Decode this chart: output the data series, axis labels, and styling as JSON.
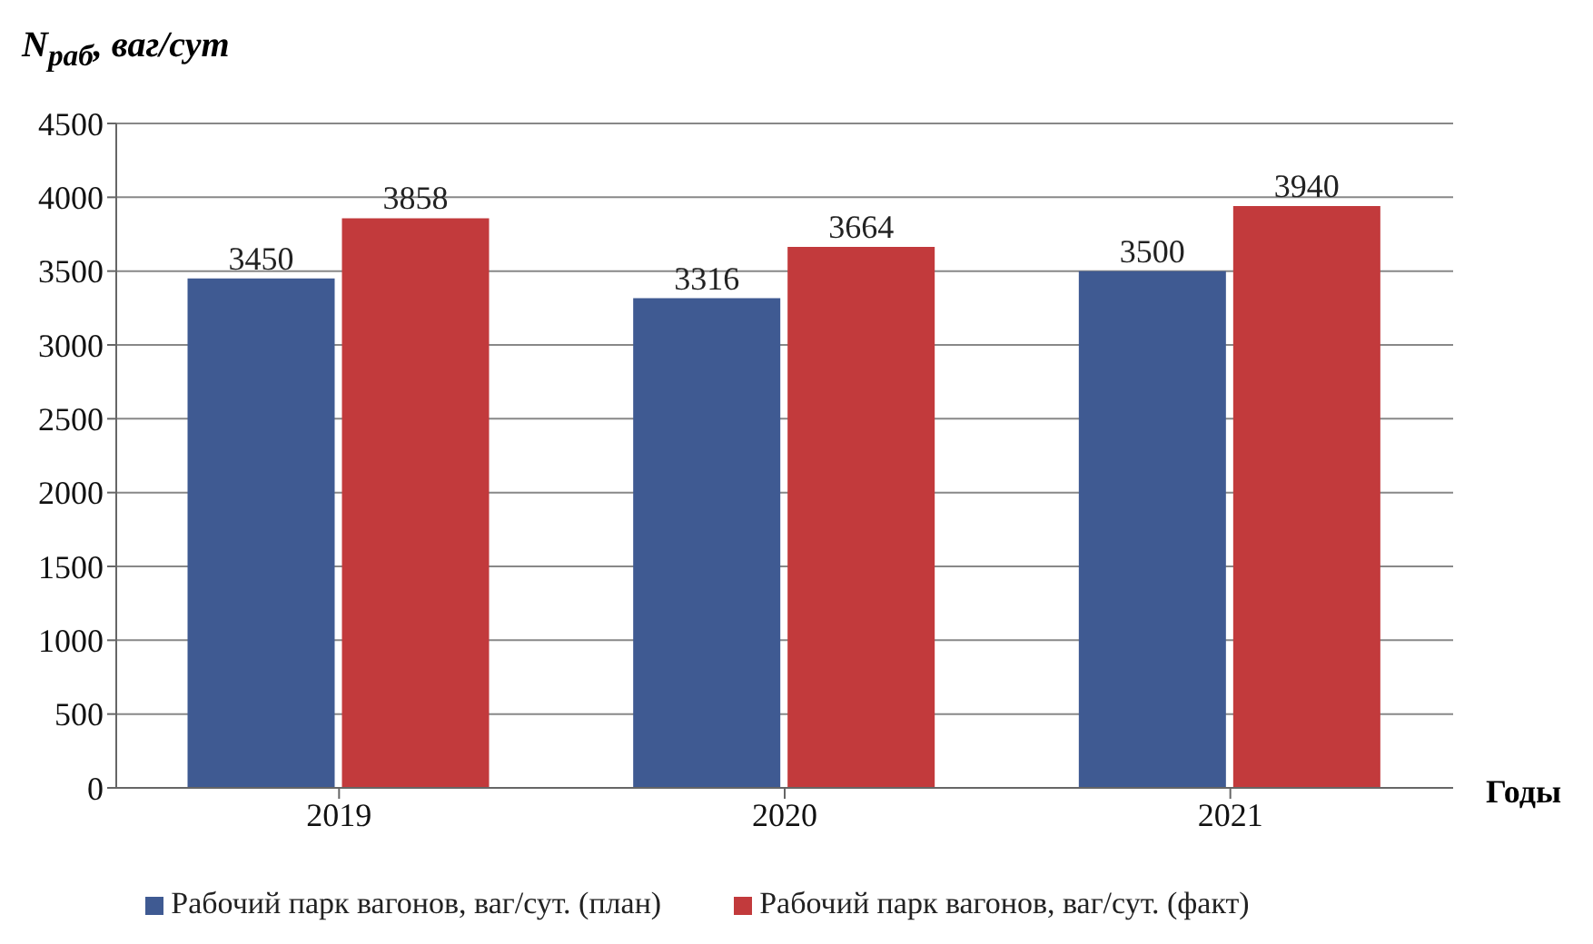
{
  "chart_data": {
    "type": "bar",
    "ylabel": "N$_{раб}$, ваг/сут",
    "xlabel": "Годы",
    "categories": [
      "2019",
      "2020",
      "2021"
    ],
    "series": [
      {
        "name": "Рабочий  парк вагонов, ваг/сут.  (план)",
        "color": "#3f5a92",
        "values": [
          3450,
          3316,
          3500
        ]
      },
      {
        "name": "Рабочий  парк вагонов, ваг/сут.  (факт)",
        "color": "#c23a3c",
        "values": [
          3858,
          3664,
          3940
        ]
      }
    ],
    "ylim": [
      0,
      4500
    ],
    "yticks": [
      0,
      500,
      1000,
      1500,
      2000,
      2500,
      3000,
      3500,
      4000,
      4500
    ],
    "grid": "y",
    "legend": "bottom",
    "data_labels": true
  }
}
